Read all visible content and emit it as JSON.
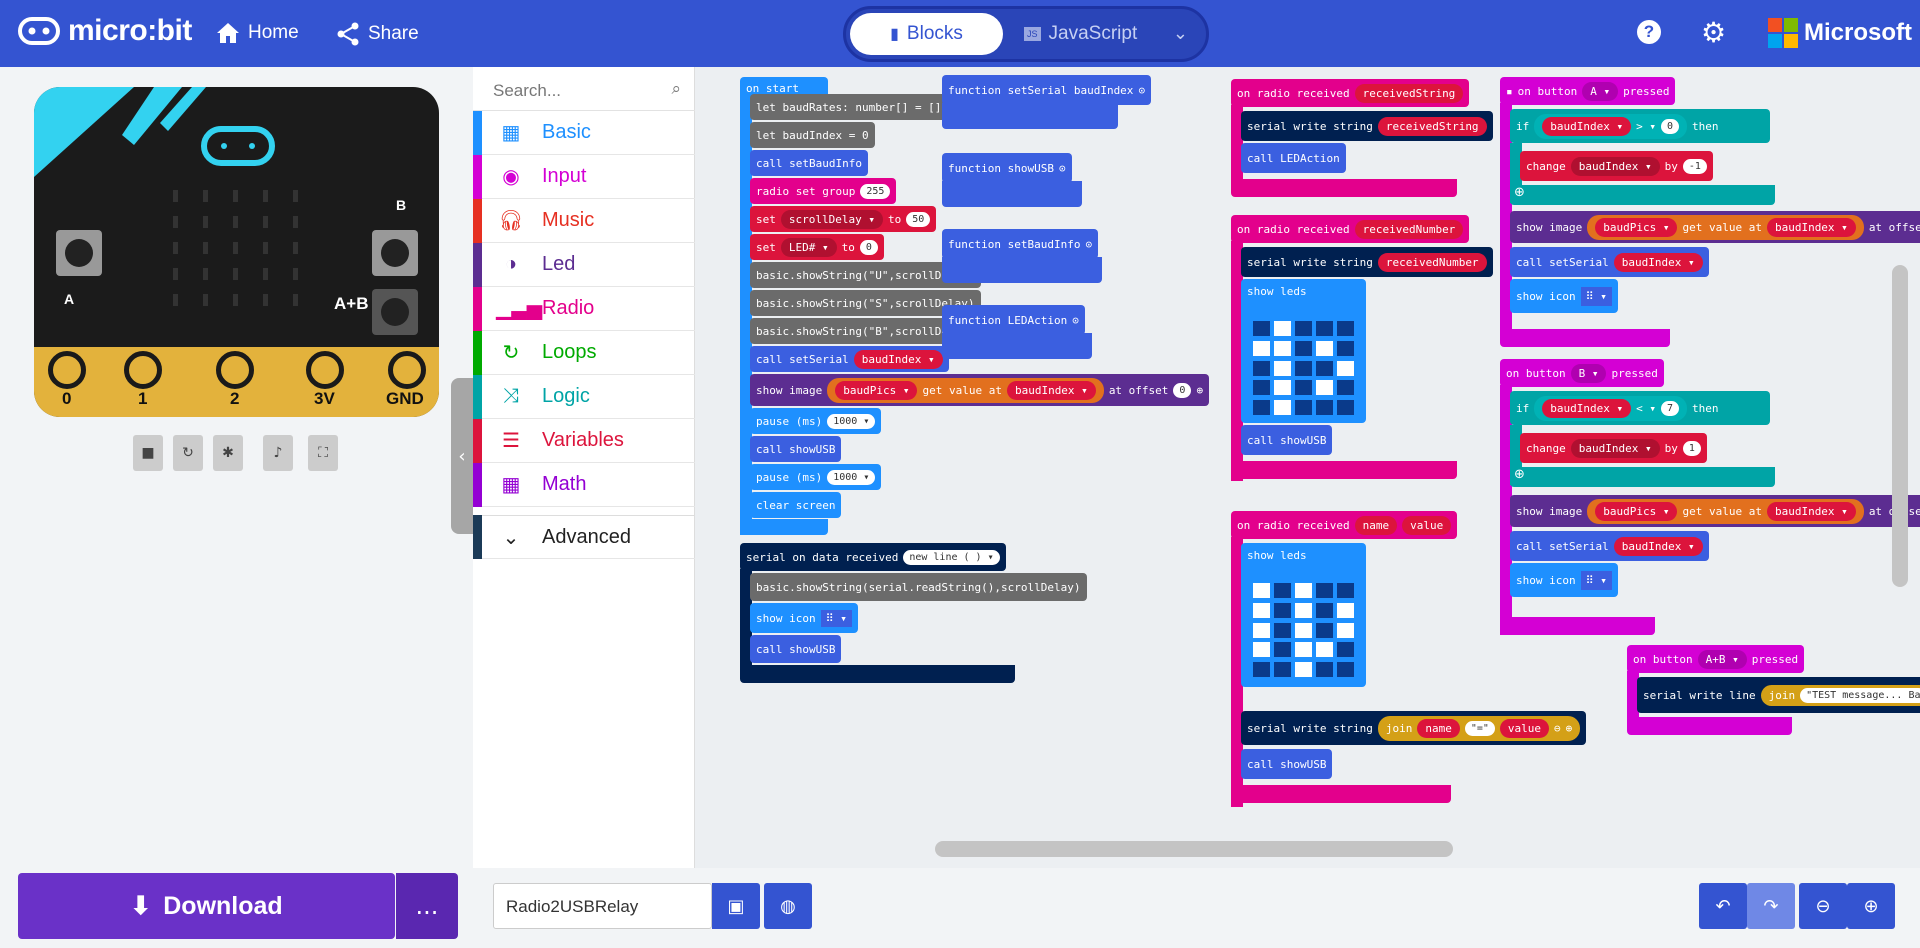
{
  "header": {
    "brand": "micro:bit",
    "home": "Home",
    "share": "Share",
    "blocks": "Blocks",
    "javascript": "JavaScript",
    "microsoft": "Microsoft"
  },
  "simulator": {
    "pins": [
      "0",
      "1",
      "2",
      "3V",
      "GND"
    ],
    "btn_a": "A",
    "btn_b": "B",
    "btn_ab": "A+B"
  },
  "toolbox": {
    "search_placeholder": "Search...",
    "categories": [
      {
        "label": "Basic",
        "color": "#1e90ff"
      },
      {
        "label": "Input",
        "color": "#d400d4"
      },
      {
        "label": "Music",
        "color": "#e63022"
      },
      {
        "label": "Led",
        "color": "#5c2d91"
      },
      {
        "label": "Radio",
        "color": "#e3008c"
      },
      {
        "label": "Loops",
        "color": "#00aa00"
      },
      {
        "label": "Logic",
        "color": "#00a4a6"
      },
      {
        "label": "Variables",
        "color": "#dc143c"
      },
      {
        "label": "Math",
        "color": "#9400d3"
      }
    ],
    "advanced": "Advanced"
  },
  "blocks": {
    "on_start": "on start",
    "let_baudrates": "let baudRates: number[] = []",
    "let_baudindex": "let baudIndex = 0",
    "call_setbaudinfo": "call setBaudInfo",
    "radio_set_group": "radio set group",
    "group_val": "255",
    "set1": "set",
    "scrolldelay": "scrollDelay ▾",
    "to": "to",
    "fifty": "50",
    "led_hash": "LED# ▾",
    "zero": "0",
    "show_u": "basic.showString(\"U\",scrollDelay)",
    "show_s": "basic.showString(\"S\",scrollDelay)",
    "show_b": "basic.showString(\"B\",scrollDelay)",
    "call_setserial": "call setSerial",
    "baudindex": "baudIndex ▾",
    "show_image": "show image",
    "baudpics": "baudPics ▾",
    "get_value_at": "get value at",
    "at_offset": "at offset",
    "pause_ms": "pause (ms)",
    "thousand": "1000 ▾",
    "call_showusb": "call showUSB",
    "clear_screen": "clear screen",
    "serial_on_data": "serial on data received",
    "new_line": "new line ( ) ▾",
    "show_serial_read": "basic.showString(serial.readString(),scrollDelay)",
    "show_icon": "show icon",
    "fn_setserial": "function setSerial baudIndex",
    "fn_showusb": "function showUSB",
    "fn_setbaudinfo": "function setBaudInfo",
    "fn_ledaction": "function LEDAction",
    "on_radio_received": "on radio received",
    "receivedstring": "receivedString",
    "receivednumber": "receivedNumber",
    "serial_write_string": "serial write string",
    "call_ledaction": "call LEDAction",
    "show_leds": "show leds",
    "name": "name",
    "value": "value",
    "join": "join",
    "eq_str": "\"=\"",
    "on_button": "on button",
    "btn_a": "A ▾",
    "btn_b": "B ▾",
    "btn_ab": "A+B ▾",
    "pressed": "pressed",
    "if": "if",
    "then": "then",
    "gt": "> ▾",
    "lt": "< ▾",
    "seven": "7",
    "change": "change",
    "by": "by",
    "minus_one": "-1",
    "one": "1",
    "serial_write_line": "serial write line",
    "test_msg": "\"TEST message... Ba"
  },
  "footer": {
    "download": "Download",
    "more": "...",
    "project_name": "Radio2USBRelay"
  }
}
